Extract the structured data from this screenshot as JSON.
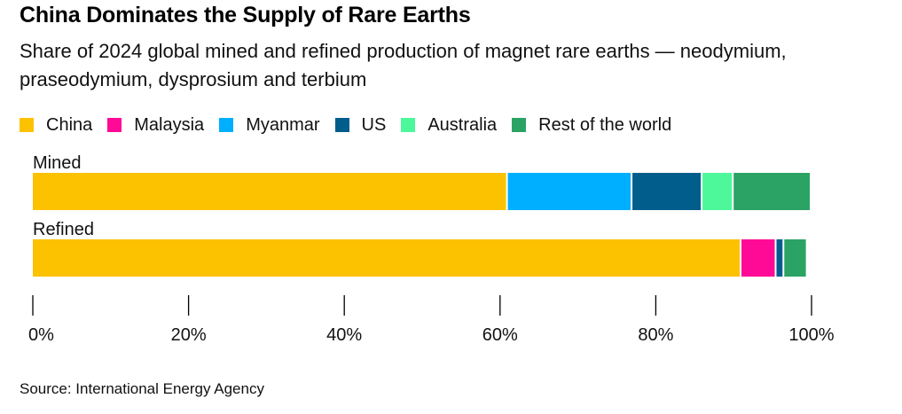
{
  "header": {
    "title": "China Dominates the Supply of Rare Earths",
    "subtitle": "Share of 2024 global mined and refined production of magnet rare earths — neodymium, praseodymium, dysprosium and terbium"
  },
  "source": "Source: International Energy Agency",
  "chart_data": {
    "type": "bar",
    "orientation": "horizontal",
    "stacked": true,
    "categories": [
      "Mined",
      "Refined"
    ],
    "series": [
      {
        "name": "China",
        "color": "#FCC200",
        "values": [
          61,
          91
        ]
      },
      {
        "name": "Malaysia",
        "color": "#FF0A97",
        "values": [
          0,
          4.5
        ]
      },
      {
        "name": "Myanmar",
        "color": "#00AFFF",
        "values": [
          16,
          0
        ]
      },
      {
        "name": "US",
        "color": "#005D8C",
        "values": [
          9,
          1
        ]
      },
      {
        "name": "Australia",
        "color": "#4CF89A",
        "values": [
          4,
          0
        ]
      },
      {
        "name": "Rest of the world",
        "color": "#2BA365",
        "values": [
          10,
          3
        ]
      }
    ],
    "xlim": [
      0,
      100
    ],
    "xticks": [
      0,
      20,
      40,
      60,
      80,
      100
    ],
    "xtick_labels": [
      "0%",
      "20%",
      "40%",
      "60%",
      "80%",
      "100%"
    ],
    "grid": false,
    "legend_position": "top-left"
  }
}
